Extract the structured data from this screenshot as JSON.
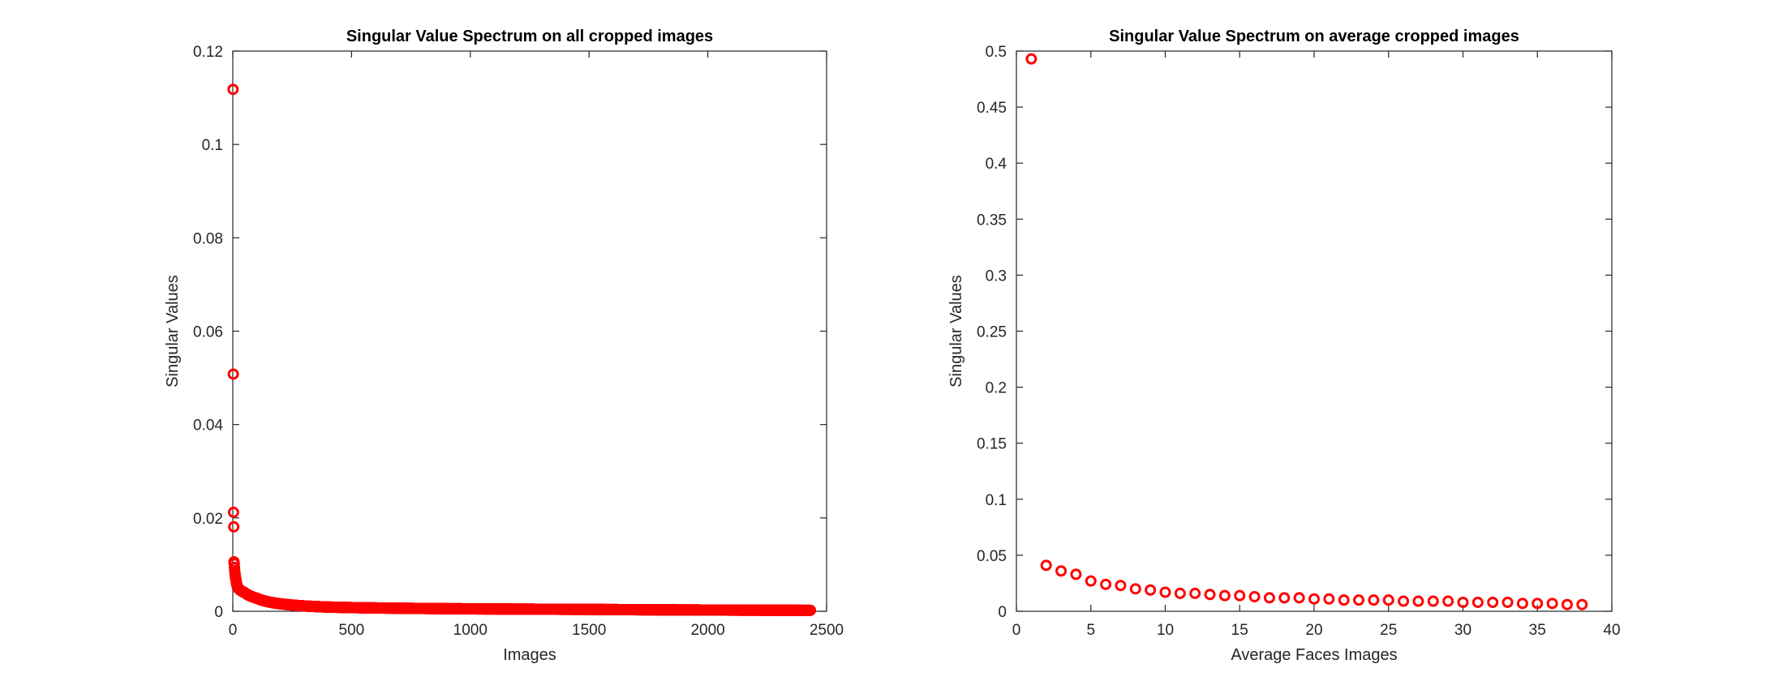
{
  "figure": {
    "background": "#ffffff"
  },
  "chart_data": [
    {
      "type": "scatter",
      "title": "Singular Value Spectrum on all cropped images",
      "xlabel": "Images",
      "ylabel": "Singular Values",
      "xlim": [
        0,
        2500
      ],
      "ylim": [
        0,
        0.12
      ],
      "xticks": [
        0,
        500,
        1000,
        1500,
        2000,
        2500
      ],
      "xtick_labels": [
        "0",
        "500",
        "1000",
        "1500",
        "2000",
        "2500"
      ],
      "yticks": [
        0,
        0.02,
        0.04,
        0.06,
        0.08,
        0.1,
        0.12
      ],
      "ytick_labels": [
        "0",
        "0.02",
        "0.04",
        "0.06",
        "0.08",
        "0.1",
        "0.12"
      ],
      "marker": "o",
      "color": "#ff0000",
      "grid": false,
      "n_points": 2432,
      "leading_values": [
        0.1118,
        0.0508,
        0.0212,
        0.0181,
        0.0106,
        0.0102,
        0.0094,
        0.0087,
        0.0082,
        0.0078,
        0.0074,
        0.0071,
        0.0068,
        0.0065,
        0.0062,
        0.0059,
        0.0057,
        0.0055,
        0.0053,
        0.0051
      ],
      "tail_decay": {
        "anchors_x": [
          20,
          50,
          100,
          200,
          400,
          800,
          1500,
          2432
        ],
        "anchors_y": [
          0.0051,
          0.004,
          0.0028,
          0.0016,
          0.0009,
          0.0006,
          0.0004,
          0.0002
        ]
      }
    },
    {
      "type": "scatter",
      "title": "Singular Value Spectrum on average cropped images",
      "xlabel": "Average Faces Images",
      "ylabel": "Singular Values",
      "xlim": [
        0,
        40
      ],
      "ylim": [
        0,
        0.5
      ],
      "xticks": [
        0,
        5,
        10,
        15,
        20,
        25,
        30,
        35,
        40
      ],
      "xtick_labels": [
        "0",
        "5",
        "10",
        "15",
        "20",
        "25",
        "30",
        "35",
        "40"
      ],
      "yticks": [
        0,
        0.05,
        0.1,
        0.15,
        0.2,
        0.25,
        0.3,
        0.35,
        0.4,
        0.45,
        0.5
      ],
      "ytick_labels": [
        "0",
        "0.05",
        "0.1",
        "0.15",
        "0.2",
        "0.25",
        "0.3",
        "0.35",
        "0.4",
        "0.45",
        "0.5"
      ],
      "marker": "o",
      "color": "#ff0000",
      "grid": false,
      "x": [
        1,
        2,
        3,
        4,
        5,
        6,
        7,
        8,
        9,
        10,
        11,
        12,
        13,
        14,
        15,
        16,
        17,
        18,
        19,
        20,
        21,
        22,
        23,
        24,
        25,
        26,
        27,
        28,
        29,
        30,
        31,
        32,
        33,
        34,
        35,
        36,
        37,
        38
      ],
      "y": [
        0.493,
        0.041,
        0.036,
        0.033,
        0.027,
        0.024,
        0.023,
        0.02,
        0.019,
        0.017,
        0.016,
        0.016,
        0.015,
        0.014,
        0.014,
        0.013,
        0.012,
        0.012,
        0.012,
        0.011,
        0.011,
        0.01,
        0.01,
        0.01,
        0.01,
        0.009,
        0.009,
        0.009,
        0.009,
        0.008,
        0.008,
        0.008,
        0.008,
        0.007,
        0.007,
        0.007,
        0.006,
        0.006
      ]
    }
  ]
}
